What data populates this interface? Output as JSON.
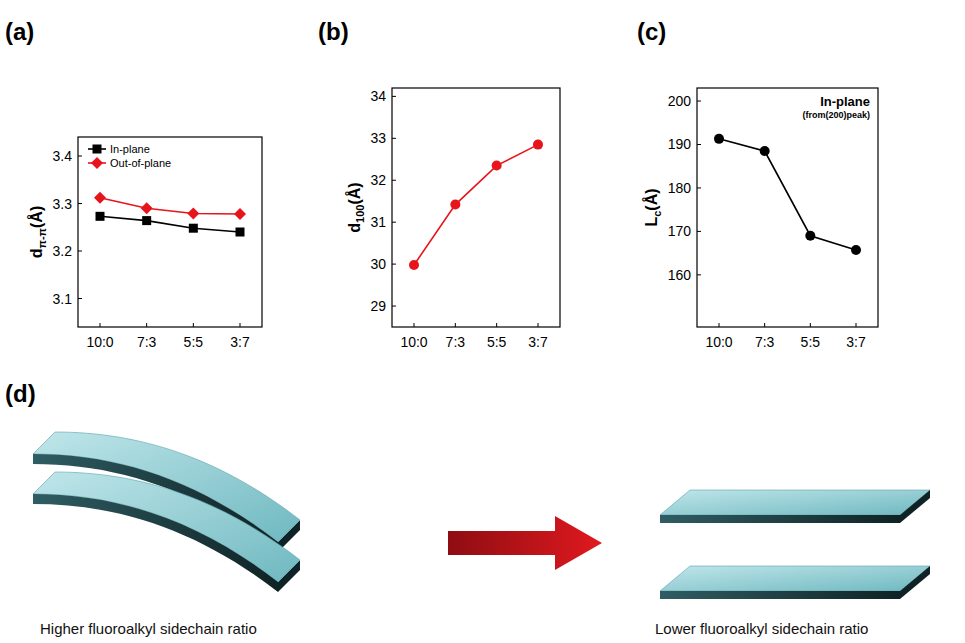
{
  "chart_data": [
    {
      "type": "line",
      "panel": "(a)",
      "ylabel": {
        "text": "d",
        "sub": "π-π",
        "unit": "(Å)"
      },
      "categories": [
        "10:0",
        "7:3",
        "5:5",
        "3:7"
      ],
      "series": [
        {
          "name": "In-plane",
          "color": "#000000",
          "marker": "square",
          "values": [
            3.273,
            3.264,
            3.248,
            3.24
          ]
        },
        {
          "name": "Out-of-plane",
          "color": "#e8141b",
          "marker": "diamond",
          "values": [
            3.312,
            3.29,
            3.279,
            3.278
          ]
        }
      ],
      "ylim": [
        3.04,
        3.44
      ],
      "yticks": [
        3.1,
        3.2,
        3.3,
        3.4
      ],
      "legend": "upper left",
      "grid": false
    },
    {
      "type": "line",
      "panel": "(b)",
      "ylabel": {
        "text": "d",
        "sub": "100",
        "unit": "(Å)"
      },
      "categories": [
        "10:0",
        "7:3",
        "5:5",
        "3:7"
      ],
      "color": "#e8141b",
      "marker": "circle",
      "values": [
        29.98,
        31.42,
        32.35,
        32.85
      ],
      "ylim": [
        28.5,
        34.2
      ],
      "yticks": [
        29,
        30,
        31,
        32,
        33,
        34
      ],
      "grid": false
    },
    {
      "type": "line",
      "panel": "(c)",
      "ylabel": {
        "text": "L",
        "sub": "c",
        "unit": "(Å)"
      },
      "annotations": [
        "In-plane",
        "(from(200)peak)"
      ],
      "categories": [
        "10:0",
        "7:3",
        "5:5",
        "3:7"
      ],
      "color": "#000000",
      "marker": "circle",
      "values": [
        191.3,
        188.5,
        169.0,
        165.7
      ],
      "ylim": [
        148,
        203
      ],
      "yticks": [
        160,
        170,
        180,
        190,
        200
      ],
      "grid": false
    }
  ],
  "diagram": {
    "panel": "(d)",
    "left_label": "Higher fluoroalkyl sidechain ratio",
    "right_label": "Lower fluoroalkyl sidechain ratio"
  }
}
